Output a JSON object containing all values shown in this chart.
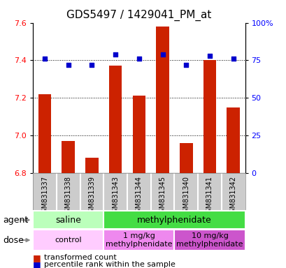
{
  "title": "GDS5497 / 1429041_PM_at",
  "samples": [
    "GSM831337",
    "GSM831338",
    "GSM831339",
    "GSM831343",
    "GSM831344",
    "GSM831345",
    "GSM831340",
    "GSM831341",
    "GSM831342"
  ],
  "bar_values": [
    7.22,
    6.97,
    6.88,
    7.37,
    7.21,
    7.58,
    6.96,
    7.4,
    7.15
  ],
  "percentile_values": [
    76,
    72,
    72,
    79,
    76,
    79,
    72,
    78,
    76
  ],
  "ylim_left": [
    6.8,
    7.6
  ],
  "ylim_right": [
    0,
    100
  ],
  "yticks_left": [
    6.8,
    7.0,
    7.2,
    7.4,
    7.6
  ],
  "yticks_right": [
    0,
    25,
    50,
    75,
    100
  ],
  "ytick_labels_right": [
    "0",
    "25",
    "50",
    "75",
    "100%"
  ],
  "bar_color": "#cc2200",
  "dot_color": "#0000cc",
  "agent_groups": [
    {
      "label": "saline",
      "start": 0,
      "end": 3,
      "color": "#bbffbb"
    },
    {
      "label": "methylphenidate",
      "start": 3,
      "end": 9,
      "color": "#44dd44"
    }
  ],
  "dose_groups": [
    {
      "label": "control",
      "start": 0,
      "end": 3,
      "color": "#ffccff"
    },
    {
      "label": "1 mg/kg\nmethylphenidate",
      "start": 3,
      "end": 6,
      "color": "#ee88ee"
    },
    {
      "label": "10 mg/kg\nmethylphenidate",
      "start": 6,
      "end": 9,
      "color": "#cc55cc"
    }
  ],
  "legend_items": [
    {
      "color": "#cc2200",
      "label": "transformed count"
    },
    {
      "color": "#0000cc",
      "label": "percentile rank within the sample"
    }
  ],
  "xlabel_agent": "agent",
  "xlabel_dose": "dose",
  "title_fontsize": 11,
  "tick_fontsize": 8,
  "label_fontsize": 9,
  "sample_fontsize": 7,
  "legend_fontsize": 8,
  "sample_bg_color": "#cccccc",
  "sample_border_color": "#aaaaaa"
}
